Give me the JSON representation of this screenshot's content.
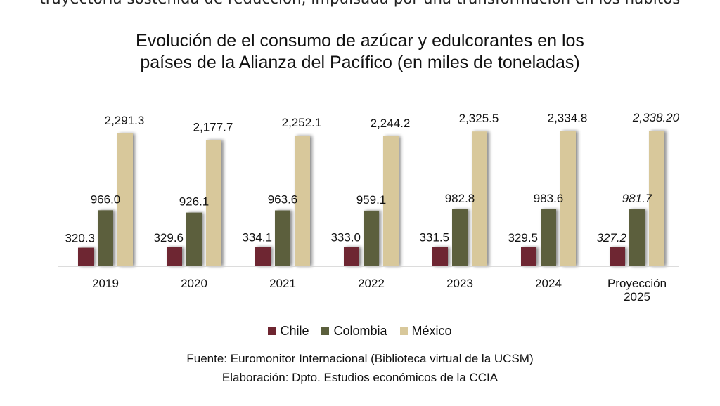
{
  "clipped_text": "trayectoria sostenida de reducción, impulsada por una transformación en los hábitos",
  "chart_data": {
    "type": "bar",
    "title": "Evolución de el consumo de azúcar y edulcorantes en los países de la Alianza del Pacífico (en miles de toneladas)",
    "title_lines": [
      "Evolución de el consumo de azúcar y edulcorantes en los",
      "países de la Alianza del Pacífico (en miles de toneladas)"
    ],
    "categories": [
      "2019",
      "2020",
      "2021",
      "2022",
      "2023",
      "2024",
      "Proyección 2025"
    ],
    "category_lines": [
      [
        "2019"
      ],
      [
        "2020"
      ],
      [
        "2021"
      ],
      [
        "2022"
      ],
      [
        "2023"
      ],
      [
        "2024"
      ],
      [
        "Proyección",
        "2025"
      ]
    ],
    "series": [
      {
        "name": "Chile",
        "color": "#6e2530",
        "values": [
          320.3,
          329.6,
          334.1,
          333.0,
          331.5,
          329.5,
          327.2
        ],
        "labels": [
          "320.3",
          "329.6",
          "334.1",
          "333.0",
          "331.5",
          "329.5",
          "327.2"
        ]
      },
      {
        "name": "Colombia",
        "color": "#5b5f3c",
        "values": [
          966.0,
          926.1,
          963.6,
          959.1,
          982.8,
          983.6,
          981.7
        ],
        "labels": [
          "966.0",
          "926.1",
          "963.6",
          "959.1",
          "982.8",
          "983.6",
          "981.7"
        ]
      },
      {
        "name": "México",
        "color": "#d8c89b",
        "values": [
          2291.3,
          2177.7,
          2252.1,
          2244.2,
          2325.5,
          2334.8,
          2338.2
        ],
        "labels": [
          "2,291.3",
          "2,177.7",
          "2,252.1",
          "2,244.2",
          "2,325.5",
          "2,334.8",
          "2,338.20"
        ]
      }
    ],
    "projected_category_index": 6,
    "xlabel": "",
    "ylabel": "",
    "ylim": [
      0,
      2400
    ],
    "grid": false,
    "legend_position": "bottom"
  },
  "legend": [
    {
      "label": "Chile",
      "color": "#6e2530"
    },
    {
      "label": "Colombia",
      "color": "#5b5f3c"
    },
    {
      "label": "México",
      "color": "#d8c89b"
    }
  ],
  "source": {
    "line1": "Fuente: Euromonitor Internacional (Biblioteca virtual de la UCSM)",
    "line2": "Elaboración: Dpto. Estudios económicos de la CCIA"
  }
}
